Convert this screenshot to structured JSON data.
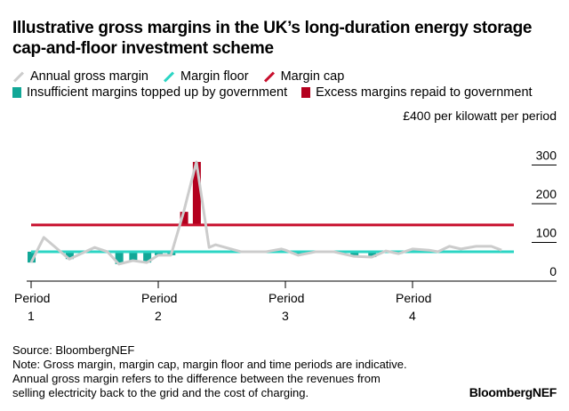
{
  "title": "Illustrative gross margins in the UK’s long-duration energy storage cap-and-floor investment scheme",
  "legend": [
    {
      "label": "Annual gross margin",
      "kind": "line",
      "color": "#cccccc"
    },
    {
      "label": "Margin floor",
      "kind": "line",
      "color": "#2cd5c4"
    },
    {
      "label": "Margin cap",
      "kind": "line",
      "color": "#c8102e"
    },
    {
      "label": "Insufficient margins topped up by government",
      "kind": "bar",
      "color": "#12a797"
    },
    {
      "label": "Excess margins repaid to government",
      "kind": "bar",
      "color": "#b4001e"
    }
  ],
  "unit_label": "£400 per kilowatt per period",
  "footer": {
    "source": "Source: BloombergNEF",
    "note1": "Note: Gross margin, margin cap, margin floor and time periods are indicative.",
    "note2": "Annual gross margin refers to the difference between the revenues from",
    "note3": "selling electricity back to the grid and the cost of charging."
  },
  "logo": "BloombergNEF",
  "chart_data": {
    "type": "line",
    "xlabel": "",
    "ylabel": "",
    "ylim": [
      0,
      400
    ],
    "xlim": [
      1,
      4.7
    ],
    "yticks": [
      "0",
      "100",
      "200",
      "300"
    ],
    "yticks_values": [
      0,
      100,
      200,
      300
    ],
    "xticks": [
      {
        "label": "Period",
        "sub": "1",
        "x": 1
      },
      {
        "label": "Period",
        "sub": "2",
        "x": 2
      },
      {
        "label": "Period",
        "sub": "3",
        "x": 3
      },
      {
        "label": "Period",
        "sub": "4",
        "x": 4
      }
    ],
    "grid": false,
    "margin_cap": 145,
    "margin_floor": 76,
    "series": [
      {
        "name": "Annual gross margin",
        "x": [
          1.0,
          1.1,
          1.3,
          1.5,
          1.6,
          1.69,
          1.8,
          1.91,
          2.0,
          2.1,
          2.2,
          2.3,
          2.4,
          2.45,
          2.65,
          2.85,
          2.97,
          3.0,
          3.1,
          3.24,
          3.38,
          3.54,
          3.68,
          3.79,
          3.89,
          4.0,
          4.13,
          4.2,
          4.29,
          4.38,
          4.5,
          4.62,
          4.7
        ],
        "y": [
          48,
          113,
          57,
          87,
          76,
          44,
          53,
          48,
          67,
          67,
          179,
          308,
          87,
          94,
          76,
          76,
          83,
          80,
          67,
          76,
          76,
          64,
          62,
          78,
          71,
          83,
          80,
          76,
          90,
          83,
          90,
          90,
          80
        ]
      }
    ]
  }
}
